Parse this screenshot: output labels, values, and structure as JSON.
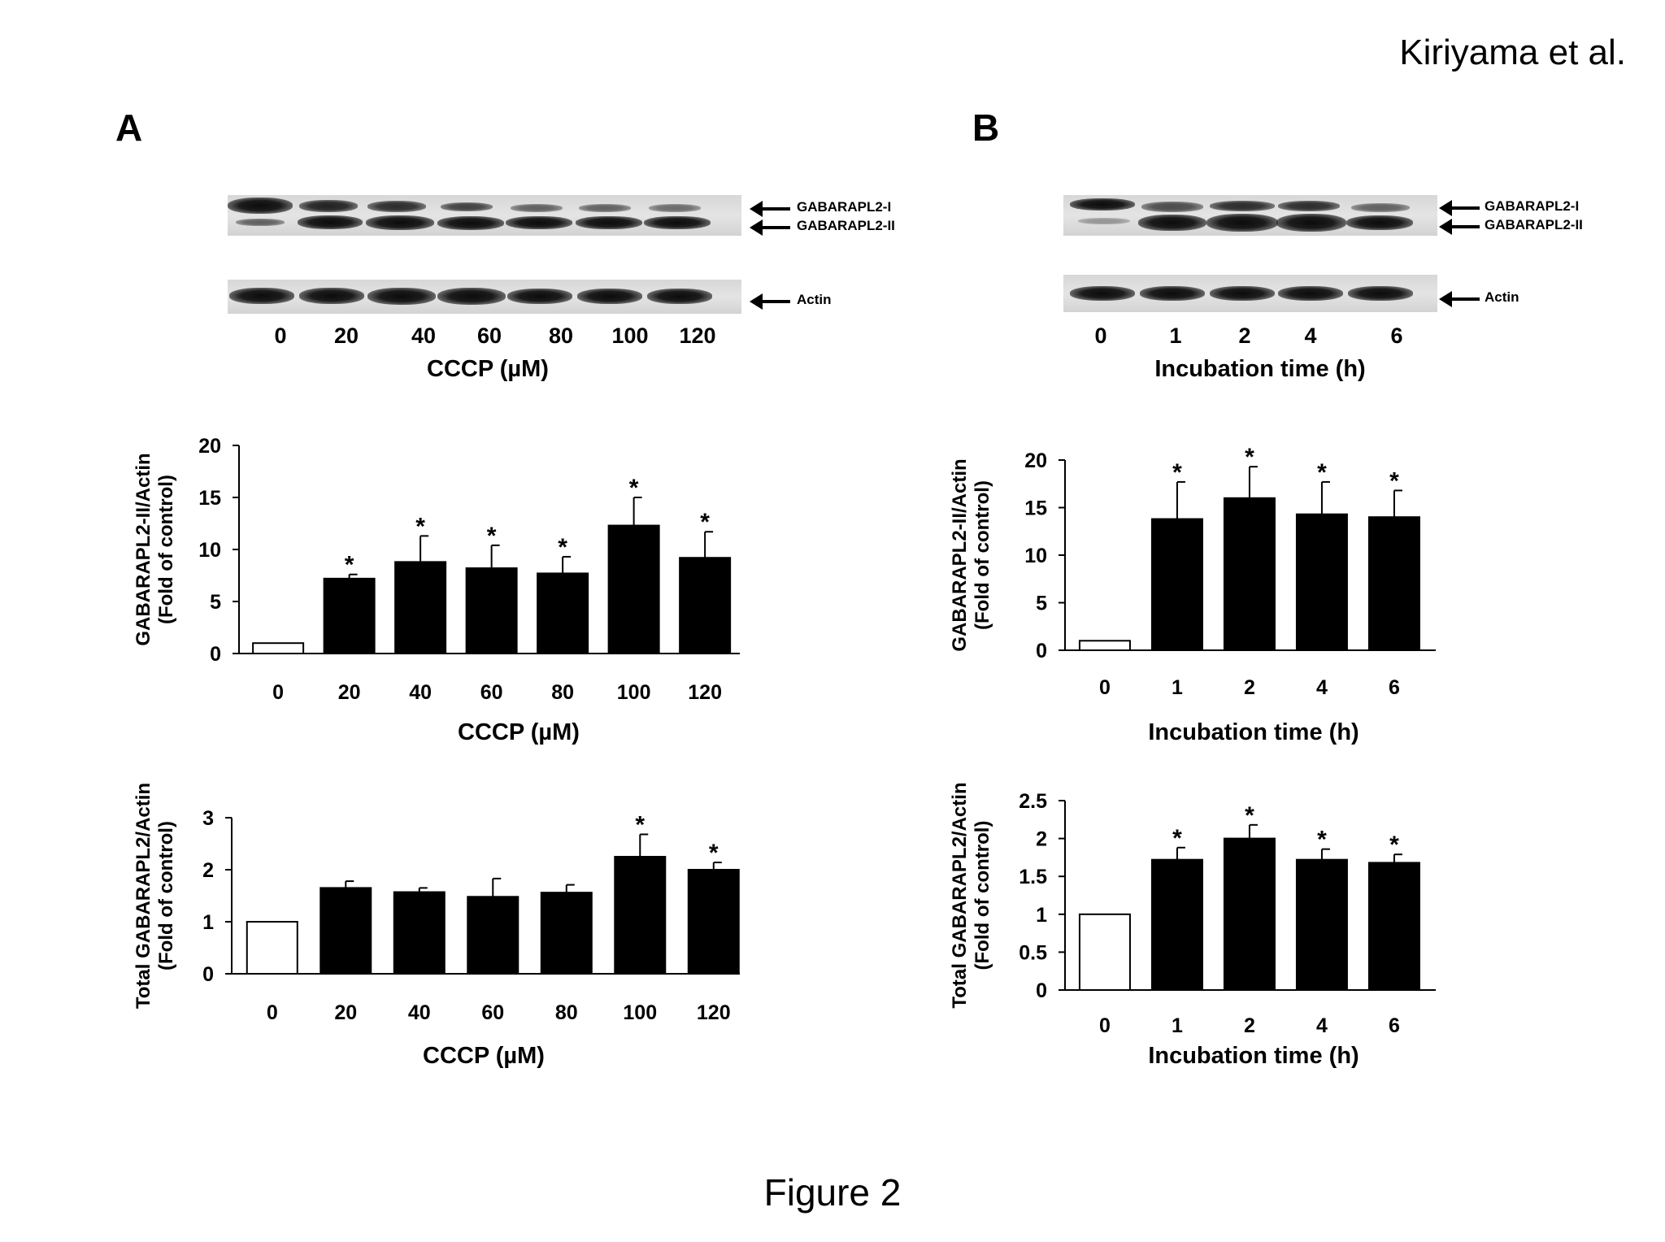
{
  "header": {
    "author": "Kiriyama et al."
  },
  "footer": {
    "figure_title": "Figure 2"
  },
  "panels": {
    "A": {
      "letter": "A",
      "blot": {
        "band_labels": [
          "GABARAPL2-I",
          "GABARAPL2-II",
          "Actin"
        ],
        "lanes": [
          "0",
          "20",
          "40",
          "60",
          "80",
          "100",
          "120"
        ],
        "xlabel": "CCCP  (µM)"
      }
    },
    "B": {
      "letter": "B",
      "blot": {
        "band_labels": [
          "GABARAPL2-I",
          "GABARAPL2-II",
          "Actin"
        ],
        "lanes": [
          "0",
          "1",
          "2",
          "4",
          "6"
        ],
        "xlabel": "Incubation time (h)"
      }
    }
  },
  "chart_data": [
    {
      "id": "A-II",
      "type": "bar",
      "categories": [
        "0",
        "20",
        "40",
        "60",
        "80",
        "100",
        "120"
      ],
      "values": [
        1,
        7.2,
        8.8,
        8.2,
        7.7,
        12.3,
        9.2
      ],
      "errors": [
        0,
        0.4,
        2.5,
        2.2,
        1.6,
        2.7,
        2.5
      ],
      "significant": [
        false,
        true,
        true,
        true,
        true,
        true,
        true
      ],
      "fills": [
        "#ffffff",
        "#000000",
        "#000000",
        "#000000",
        "#000000",
        "#000000",
        "#000000"
      ],
      "ylim": [
        0,
        20
      ],
      "yticks": [
        0,
        5,
        10,
        15,
        20
      ],
      "ylabel": [
        "GABARAPL2-II/Actin",
        "(Fold of control)"
      ],
      "xlabel": "CCCP (µM)"
    },
    {
      "id": "A-total",
      "type": "bar",
      "categories": [
        "0",
        "20",
        "40",
        "60",
        "80",
        "100",
        "120"
      ],
      "values": [
        1,
        1.65,
        1.57,
        1.48,
        1.56,
        2.25,
        2.0
      ],
      "errors": [
        0,
        0.13,
        0.08,
        0.35,
        0.15,
        0.43,
        0.14
      ],
      "significant": [
        false,
        false,
        false,
        false,
        false,
        true,
        true
      ],
      "fills": [
        "#ffffff",
        "#000000",
        "#000000",
        "#000000",
        "#000000",
        "#000000",
        "#000000"
      ],
      "ylim": [
        0,
        3
      ],
      "yticks": [
        0,
        1,
        2,
        3
      ],
      "ylabel": [
        "Total GABARAPL2/Actin",
        "(Fold of control)"
      ],
      "xlabel": "CCCP (µM)"
    },
    {
      "id": "B-II",
      "type": "bar",
      "categories": [
        "0",
        "1",
        "2",
        "4",
        "6"
      ],
      "values": [
        1,
        13.8,
        16.0,
        14.3,
        14.0
      ],
      "errors": [
        0,
        3.9,
        3.3,
        3.4,
        2.8
      ],
      "significant": [
        false,
        true,
        true,
        true,
        true
      ],
      "fills": [
        "#ffffff",
        "#000000",
        "#000000",
        "#000000",
        "#000000"
      ],
      "ylim": [
        0,
        20
      ],
      "yticks": [
        0,
        5,
        10,
        15,
        20
      ],
      "ylabel": [
        "GABARAPL2-II/Actin",
        "(Fold of control)"
      ],
      "xlabel": "Incubation time (h)"
    },
    {
      "id": "B-total",
      "type": "bar",
      "categories": [
        "0",
        "1",
        "2",
        "4",
        "6"
      ],
      "values": [
        1,
        1.72,
        2.0,
        1.72,
        1.68
      ],
      "errors": [
        0,
        0.16,
        0.18,
        0.14,
        0.11
      ],
      "significant": [
        false,
        true,
        true,
        true,
        true
      ],
      "fills": [
        "#ffffff",
        "#000000",
        "#000000",
        "#000000",
        "#000000"
      ],
      "ylim": [
        0,
        2.5
      ],
      "yticks": [
        0,
        0.5,
        1,
        1.5,
        2,
        2.5
      ],
      "ylabel": [
        "Total GABARAPL2/Actin",
        "(Fold of control)"
      ],
      "xlabel": "Incubation time (h)"
    }
  ]
}
